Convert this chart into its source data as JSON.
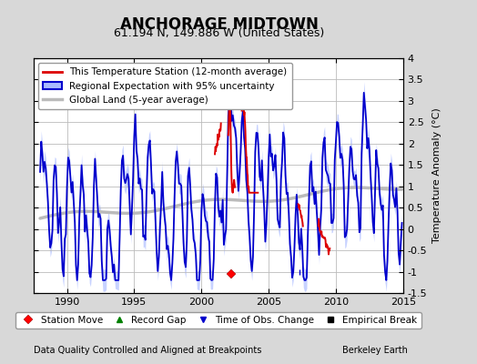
{
  "title": "ANCHORAGE MIDTOWN",
  "subtitle": "61.194 N, 149.886 W (United States)",
  "ylabel": "Temperature Anomaly (°C)",
  "footer_left": "Data Quality Controlled and Aligned at Breakpoints",
  "footer_right": "Berkeley Earth",
  "xlim": [
    1987.5,
    2015.0
  ],
  "ylim": [
    -1.5,
    4.0
  ],
  "yticks": [
    -1.5,
    -1.0,
    -0.5,
    0.0,
    0.5,
    1.0,
    1.5,
    2.0,
    2.5,
    3.0,
    3.5,
    4.0
  ],
  "xticks": [
    1990,
    1995,
    2000,
    2005,
    2010,
    2015
  ],
  "bg_color": "#d8d8d8",
  "plot_bg_color": "#ffffff",
  "grid_color": "#bbbbbb",
  "station_color": "#dd0000",
  "regional_color": "#0000cc",
  "regional_fill_color": "#aabbff",
  "global_color": "#bbbbbb",
  "global_linewidth": 2.5,
  "legend_label_station": "This Temperature Station (12-month average)",
  "legend_label_regional": "Regional Expectation with 95% uncertainty",
  "legend_label_global": "Global Land (5-year average)",
  "marker_station_move_x": 2002.2,
  "marker_tobs_x": 2007.3,
  "marker_y": -1.05,
  "title_fontsize": 12,
  "subtitle_fontsize": 9,
  "axis_label_fontsize": 8,
  "tick_fontsize": 8,
  "legend_fontsize": 7.5,
  "footer_fontsize": 7
}
